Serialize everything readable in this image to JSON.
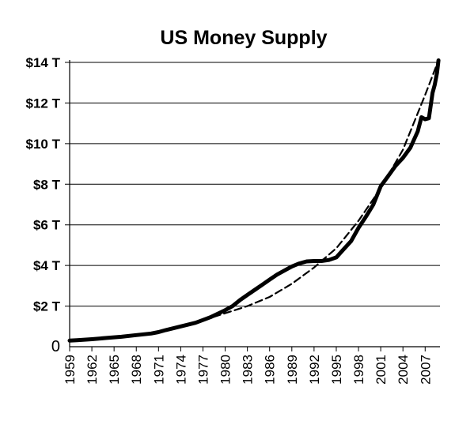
{
  "chart_data": {
    "type": "line",
    "title": "US Money Supply",
    "xlabel": "",
    "ylabel": "",
    "xlim": [
      1959,
      2009
    ],
    "ylim": [
      0,
      14
    ],
    "grid": "horizontal",
    "legend": "none",
    "yticks": [
      {
        "value": 0,
        "label": "0"
      },
      {
        "value": 2,
        "label": "$2 T"
      },
      {
        "value": 4,
        "label": "$4 T"
      },
      {
        "value": 6,
        "label": "$6 T"
      },
      {
        "value": 8,
        "label": "$8 T"
      },
      {
        "value": 10,
        "label": "$10 T"
      },
      {
        "value": 12,
        "label": "$12 T"
      },
      {
        "value": 14,
        "label": "$14 T"
      }
    ],
    "xticks": [
      "1959",
      "1962",
      "1965",
      "1968",
      "1971",
      "1974",
      "1977",
      "1980",
      "1983",
      "1986",
      "1989",
      "1992",
      "1995",
      "1998",
      "2001",
      "2004",
      "2007"
    ],
    "series": [
      {
        "style": "solid",
        "color": "#000000",
        "x": [
          1959,
          1960,
          1962,
          1964,
          1966,
          1968,
          1970,
          1971,
          1972,
          1974,
          1976,
          1978,
          1980,
          1981,
          1982,
          1983,
          1984,
          1985,
          1986,
          1987,
          1988,
          1989,
          1990,
          1991,
          1992,
          1993,
          1994,
          1995,
          1996,
          1997,
          1998,
          1999,
          2000,
          2001,
          2002,
          2003,
          2004,
          2005,
          2006,
          2006.5,
          2007,
          2007.5,
          2008,
          2008.3,
          2008.6,
          2008.8
        ],
        "y": [
          0.3,
          0.32,
          0.37,
          0.43,
          0.49,
          0.57,
          0.65,
          0.72,
          0.82,
          1.0,
          1.18,
          1.45,
          1.8,
          2.0,
          2.3,
          2.55,
          2.8,
          3.05,
          3.3,
          3.55,
          3.75,
          3.95,
          4.1,
          4.2,
          4.22,
          4.22,
          4.27,
          4.4,
          4.8,
          5.2,
          5.85,
          6.4,
          7.0,
          7.9,
          8.4,
          8.9,
          9.3,
          9.8,
          10.6,
          11.3,
          11.2,
          11.25,
          12.5,
          12.9,
          13.5,
          14.1
        ]
      },
      {
        "style": "dashed",
        "color": "#000000",
        "x": [
          1977,
          1980,
          1983,
          1986,
          1989,
          1992,
          1995,
          1998,
          2001,
          2004,
          2007,
          2008.8
        ],
        "y": [
          1.3,
          1.65,
          2.0,
          2.45,
          3.1,
          3.9,
          4.85,
          6.2,
          7.8,
          9.7,
          12.4,
          14.1
        ]
      }
    ]
  }
}
